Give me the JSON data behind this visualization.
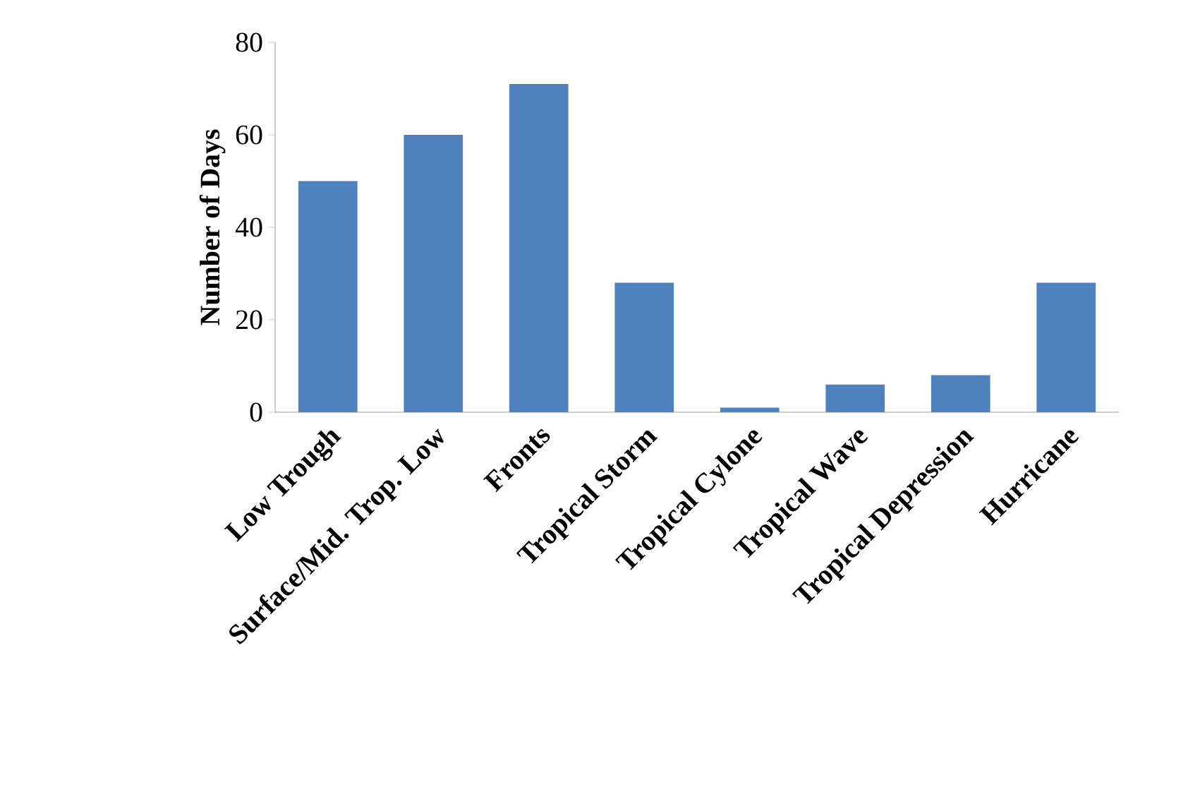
{
  "chart_data": {
    "type": "bar",
    "ylabel": "Number of Days",
    "categories": [
      "Low Trough",
      "Surface/Mid. Trop. Low",
      "Fronts",
      "Tropical Storm",
      "Tropical Cylone",
      "Tropical Wave",
      "Tropical Depression",
      "Hurricane"
    ],
    "values": [
      50,
      60,
      71,
      28,
      1,
      6,
      8,
      28
    ],
    "color": "#4f81bd",
    "ylim": [
      0,
      80
    ],
    "yticks": [
      0,
      20,
      40,
      60,
      80
    ],
    "grid": false
  }
}
